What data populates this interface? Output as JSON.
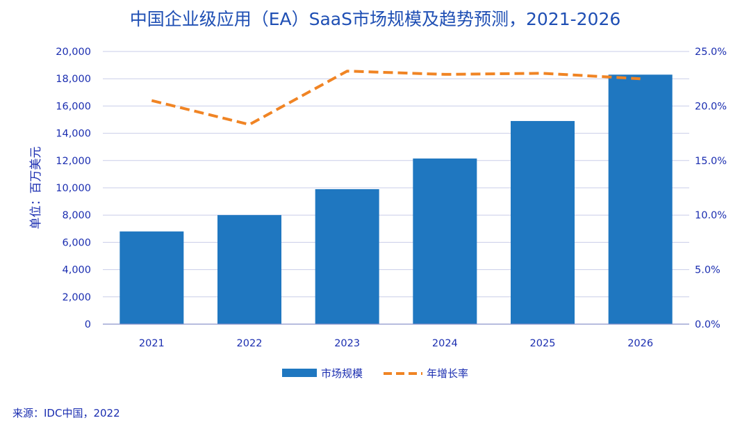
{
  "chart_data": {
    "type": "bar",
    "title": "中国企业级应用（EA）SaaS市场规模及趋势预测，2021-2026",
    "categories": [
      "2021",
      "2022",
      "2023",
      "2024",
      "2025",
      "2026"
    ],
    "ylabel": "单位：百万美元",
    "ylim": [
      0,
      20000
    ],
    "yticks": [
      "20,000",
      "18,000",
      "16,000",
      "14,000",
      "12,000",
      "10,000",
      "8,000",
      "6,000",
      "4,000",
      "2,000",
      "0"
    ],
    "y2lim": [
      0,
      25
    ],
    "y2ticks": [
      "25.0%",
      "20.0%",
      "15.0%",
      "10.0%",
      "5.0%",
      "0.0%"
    ],
    "grid": true,
    "legend_position": "bottom",
    "series": [
      {
        "name": "市场规模",
        "type": "bar",
        "axis": "left",
        "color": "#1f77c0",
        "values": [
          6800,
          8000,
          9900,
          12150,
          14900,
          18300
        ]
      },
      {
        "name": "年增长率",
        "type": "line",
        "style": "dashed",
        "axis": "right",
        "color": "#f08424",
        "values": [
          20.5,
          18.3,
          23.2,
          22.9,
          23.0,
          22.5
        ]
      }
    ],
    "source": "来源：IDC中国，2022"
  }
}
